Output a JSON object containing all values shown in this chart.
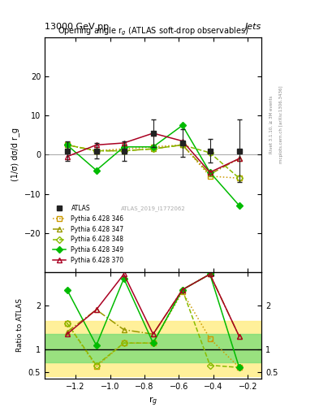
{
  "title_top_left": "13000 GeV pp",
  "title_top_right": "Jets",
  "plot_title": "Opening angle r$_g$ (ATLAS soft-drop observables)",
  "xlabel": "r$_g$",
  "ylabel_main": "(1/σ) dσ/d r_g",
  "ylabel_ratio": "Ratio to ATLAS",
  "watermark": "ATLAS_2019_I1772062",
  "rivet_label": "Rivet 3.1.10, ≥ 3M events",
  "mcplots_label": "mcplots.cern.ch [arXiv:1306.3436]",
  "x_values": [
    -1.25,
    -1.08,
    -0.92,
    -0.75,
    -0.58,
    -0.42,
    -0.25
  ],
  "ATLAS_y": [
    1.0,
    1.0,
    1.0,
    5.5,
    3.0,
    1.0,
    1.0
  ],
  "ATLAS_yerr": [
    2.5,
    2.0,
    2.5,
    3.5,
    3.5,
    3.0,
    8.0
  ],
  "p346_y": [
    2.5,
    1.0,
    1.5,
    2.0,
    2.5,
    -5.5,
    -6.0
  ],
  "p347_y": [
    2.5,
    1.0,
    1.0,
    1.5,
    2.5,
    -5.0,
    -1.0
  ],
  "p348_y": [
    2.5,
    1.0,
    1.0,
    1.5,
    2.5,
    0.5,
    -6.0
  ],
  "p349_y": [
    2.5,
    -4.0,
    2.0,
    2.0,
    7.5,
    -4.5,
    -13.0
  ],
  "p370_y": [
    -0.5,
    2.5,
    3.0,
    5.5,
    3.5,
    -4.5,
    -1.0
  ],
  "ratio_ATLAS_yellow_lo": 0.4,
  "ratio_ATLAS_yellow_hi": 1.65,
  "ratio_ATLAS_green_lo": 0.72,
  "ratio_ATLAS_green_hi": 1.35,
  "ratio_346": [
    1.6,
    0.62,
    1.15,
    1.15,
    2.3,
    1.25,
    0.6
  ],
  "ratio_347": [
    1.4,
    1.9,
    1.45,
    1.35,
    2.35,
    2.7,
    1.3
  ],
  "ratio_348": [
    1.6,
    0.65,
    1.15,
    1.15,
    2.35,
    0.65,
    0.6
  ],
  "ratio_349": [
    2.35,
    1.1,
    2.6,
    1.15,
    2.35,
    2.7,
    0.6
  ],
  "ratio_370": [
    1.35,
    1.9,
    2.7,
    1.35,
    2.35,
    2.7,
    1.3
  ],
  "color_atlas": "#222222",
  "color_346": "#cc9900",
  "color_347": "#999900",
  "color_348": "#88bb00",
  "color_349": "#00bb00",
  "color_370": "#aa0022",
  "xlim": [
    -1.38,
    -0.12
  ],
  "ylim_main": [
    -30,
    30
  ],
  "ylim_ratio": [
    0.35,
    2.75
  ],
  "yticks_main": [
    -20,
    -10,
    0,
    10,
    20
  ],
  "yticks_ratio": [
    0.5,
    1.0,
    2.0
  ],
  "background_color": "#ffffff"
}
